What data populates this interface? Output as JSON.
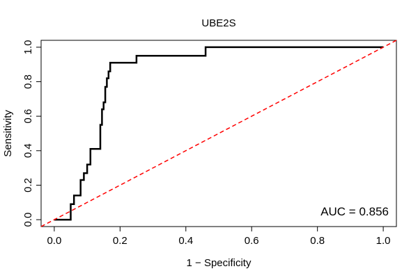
{
  "chart_data": {
    "type": "line",
    "title": "UBE2S",
    "xlabel": "1 − Specificity",
    "ylabel": "Sensitivity",
    "xlim": [
      -0.04,
      1.04
    ],
    "ylim": [
      -0.04,
      1.04
    ],
    "x_ticks": [
      0.0,
      0.2,
      0.4,
      0.6,
      0.8,
      1.0
    ],
    "y_ticks": [
      0.0,
      0.2,
      0.4,
      0.6,
      0.8,
      1.0
    ],
    "x_tick_labels": [
      "0.0",
      "0.2",
      "0.4",
      "0.6",
      "0.8",
      "1.0"
    ],
    "y_tick_labels": [
      "0.0",
      "0.2",
      "0.4",
      "0.6",
      "0.8",
      "1.0"
    ],
    "annotation": "AUC = 0.856",
    "grid": false,
    "series": [
      {
        "style": "step",
        "color": "#000000",
        "x": [
          0.0,
          0.05,
          0.05,
          0.06,
          0.06,
          0.08,
          0.08,
          0.09,
          0.09,
          0.1,
          0.1,
          0.11,
          0.11,
          0.12,
          0.12,
          0.14,
          0.14,
          0.145,
          0.145,
          0.15,
          0.15,
          0.155,
          0.155,
          0.16,
          0.16,
          0.165,
          0.165,
          0.17,
          0.17,
          0.25,
          0.25,
          0.46,
          0.46,
          1.0
        ],
        "y": [
          0.0,
          0.0,
          0.09,
          0.09,
          0.14,
          0.14,
          0.23,
          0.23,
          0.27,
          0.27,
          0.32,
          0.32,
          0.41,
          0.41,
          0.41,
          0.41,
          0.55,
          0.55,
          0.64,
          0.64,
          0.68,
          0.68,
          0.77,
          0.77,
          0.82,
          0.82,
          0.86,
          0.86,
          0.91,
          0.91,
          0.95,
          0.95,
          1.0,
          1.0
        ]
      },
      {
        "style": "dashed",
        "color": "#ff0000",
        "x": [
          -0.04,
          1.04
        ],
        "y": [
          -0.04,
          1.04
        ]
      }
    ]
  }
}
